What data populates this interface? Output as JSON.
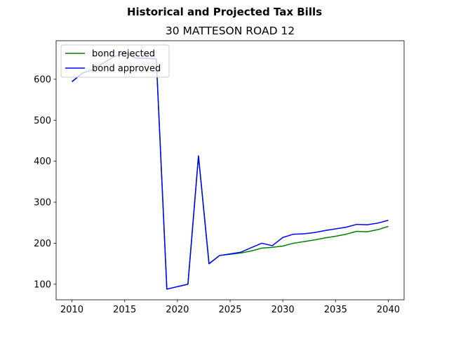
{
  "chart_data": {
    "type": "line",
    "suptitle": "Historical and Projected Tax Bills",
    "title": "30 MATTESON ROAD  12",
    "xlabel": "",
    "ylabel": "",
    "xlim": [
      2008.5,
      2041.5
    ],
    "ylim": [
      62,
      694
    ],
    "xticks": [
      2010,
      2015,
      2020,
      2025,
      2030,
      2035,
      2040
    ],
    "yticks": [
      100,
      200,
      300,
      400,
      500,
      600
    ],
    "grid": false,
    "legend_position": "upper-left",
    "x": [
      2010,
      2011,
      2012,
      2013,
      2014,
      2015,
      2016,
      2017,
      2018,
      2019,
      2020,
      2021,
      2022,
      2023,
      2024,
      2025,
      2026,
      2027,
      2028,
      2029,
      2030,
      2031,
      2032,
      2033,
      2034,
      2035,
      2036,
      2037,
      2038,
      2039,
      2040
    ],
    "series": [
      {
        "name": "bond rejected",
        "color": "#008000",
        "values": [
          594,
          615,
          624,
          640,
          655,
          665,
          652,
          651,
          650,
          88,
          94,
          100,
          413,
          150,
          170,
          173,
          176,
          181,
          188,
          190,
          193,
          200,
          204,
          208,
          213,
          217,
          222,
          229,
          228,
          233,
          241
        ]
      },
      {
        "name": "bond approved",
        "color": "#0000ff",
        "values": [
          594,
          615,
          624,
          640,
          655,
          665,
          652,
          651,
          650,
          88,
          94,
          100,
          413,
          150,
          170,
          174,
          178,
          189,
          200,
          194,
          214,
          222,
          223,
          226,
          231,
          235,
          239,
          246,
          245,
          249,
          256
        ]
      }
    ]
  }
}
